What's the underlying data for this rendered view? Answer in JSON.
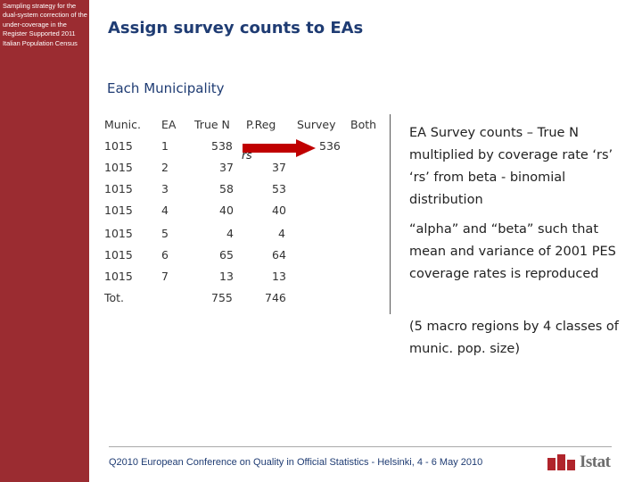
{
  "sidebar": {
    "caption": "Sampling strategy for the dual-system correction of the under-coverage in the Register Supported 2011 Italian Population Census"
  },
  "slide": {
    "title": "Assign survey counts to EAs",
    "subtitle": "Each Municipality"
  },
  "table": {
    "headers": [
      "Munic.",
      "EA",
      "True N",
      "P.Reg",
      "Survey",
      "Both"
    ],
    "rows": [
      [
        "1015",
        "1",
        "538",
        "",
        "536",
        ""
      ],
      [
        "1015",
        "2",
        "37",
        "37",
        "",
        ""
      ],
      [
        "1015",
        "3",
        "58",
        "53",
        "",
        ""
      ],
      [
        "1015",
        "4",
        "40",
        "40",
        "",
        ""
      ],
      [
        "1015",
        "5",
        "4",
        "4",
        "",
        ""
      ],
      [
        "1015",
        "6",
        "65",
        "64",
        "",
        ""
      ],
      [
        "1015",
        "7",
        "13",
        "13",
        "",
        ""
      ]
    ],
    "total": [
      "Tot.",
      "",
      "755",
      "746",
      "",
      ""
    ],
    "arrow_label": "rs"
  },
  "right": {
    "line1": "EA Survey counts – True N multiplied by coverage rate ‘rs’",
    "line2": "‘rs’ from beta - binomial distribution",
    "line3": "“alpha” and “beta” such that mean and variance of 2001 PES coverage rates is reproduced",
    "line4": "(5 macro regions by 4 classes of munic. pop. size)"
  },
  "footer": {
    "text": "Q2010 European Conference on Quality in Official Statistics - Helsinki, 4 - 6 May 2010"
  },
  "logo": {
    "text": "Istat"
  },
  "colors": {
    "brand": "#9b2c31",
    "title": "#1f3c73",
    "arrow": "#c00000"
  }
}
